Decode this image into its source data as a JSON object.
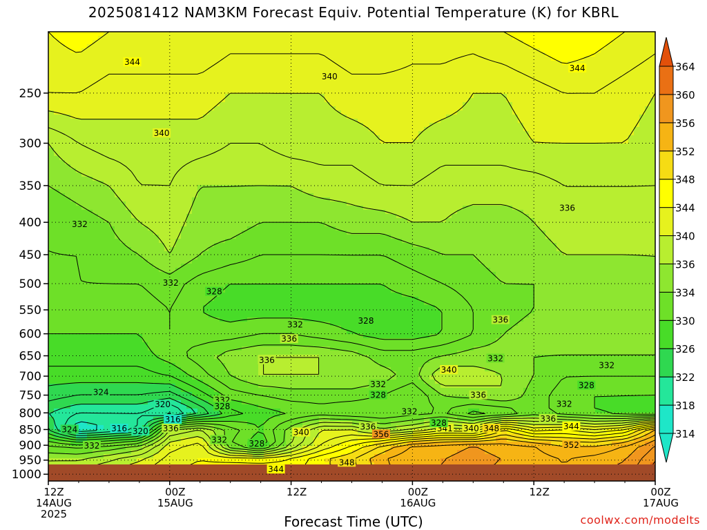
{
  "title": "2025081412 NAM3KM Forecast Equiv. Potential Temperature (K) for KBRL",
  "credit": "coolwx.com/modelts",
  "chart_data": {
    "type": "heatmap",
    "title": "2025081412 NAM3KM Forecast Equiv. Potential Temperature (K) for KBRL",
    "xlabel": "Forecast Time (UTC)",
    "ylabel": "",
    "y_axis": {
      "scale": "log-pressure",
      "inverted": true,
      "range": [
        1025,
        200
      ],
      "ticks": [
        250,
        300,
        350,
        400,
        450,
        500,
        550,
        600,
        650,
        700,
        750,
        800,
        850,
        900,
        950,
        1000
      ]
    },
    "x_axis": {
      "range_hours": [
        0,
        60
      ],
      "ticks": [
        {
          "hour": 0,
          "lines": [
            "12Z",
            "14AUG",
            "2025"
          ]
        },
        {
          "hour": 12,
          "lines": [
            "00Z",
            "15AUG"
          ]
        },
        {
          "hour": 24,
          "lines": [
            "12Z"
          ]
        },
        {
          "hour": 36,
          "lines": [
            "00Z",
            "16AUG"
          ]
        },
        {
          "hour": 48,
          "lines": [
            "12Z"
          ]
        },
        {
          "hour": 60,
          "lines": [
            "00Z",
            "17AUG"
          ]
        }
      ]
    },
    "grid": true,
    "colorbar": {
      "position": "right",
      "levels": [
        314,
        318,
        322,
        326,
        330,
        334,
        336,
        340,
        344,
        348,
        352,
        356,
        360,
        364
      ],
      "colors": [
        "#1ee6c8",
        "#24e69a",
        "#2fd850",
        "#48dc28",
        "#6ee028",
        "#8ee630",
        "#b8ee30",
        "#e6f21e",
        "#ffff00",
        "#f6dc14",
        "#f6b414",
        "#f0961e",
        "#ea7014",
        "#e2500a"
      ]
    },
    "hours": [
      0,
      3,
      6,
      9,
      12,
      15,
      18,
      21,
      24,
      27,
      30,
      33,
      36,
      39,
      42,
      45,
      48,
      51,
      54,
      57,
      60
    ],
    "pressure_levels": [
      200,
      250,
      300,
      350,
      400,
      450,
      500,
      550,
      600,
      650,
      700,
      750,
      800,
      850,
      900,
      950,
      1000
    ],
    "theta_e": [
      [
        344,
        345,
        344,
        344,
        344,
        344,
        343,
        343,
        343,
        343,
        344,
        344,
        343,
        343,
        343,
        344,
        345,
        346,
        345,
        344,
        343
      ],
      [
        342,
        342,
        341,
        341,
        341,
        341,
        340,
        340,
        340,
        340,
        341,
        341,
        341,
        341,
        340,
        340,
        341,
        342,
        342,
        341,
        340
      ],
      [
        336,
        338,
        339,
        339,
        339,
        339,
        338,
        338,
        339,
        339,
        339,
        340,
        340,
        339,
        339,
        339,
        340,
        340,
        340,
        340,
        339
      ],
      [
        334,
        335,
        336,
        338,
        338,
        336,
        336,
        336,
        336,
        337,
        337,
        338,
        338,
        337,
        337,
        337,
        337,
        338,
        338,
        338,
        338
      ],
      [
        332,
        333,
        334,
        336,
        337,
        335,
        335,
        334,
        334,
        334,
        335,
        335,
        336,
        336,
        335,
        335,
        336,
        337,
        337,
        337,
        337
      ],
      [
        332,
        332,
        333,
        334,
        336,
        334,
        333,
        332,
        332,
        332,
        332,
        332,
        333,
        334,
        334,
        335,
        335,
        336,
        336,
        336,
        336
      ],
      [
        331,
        332,
        332,
        332,
        333,
        331,
        330,
        330,
        330,
        330,
        330,
        330,
        331,
        332,
        333,
        334,
        334,
        335,
        335,
        335,
        336
      ],
      [
        331,
        331,
        331,
        331,
        332,
        330,
        329,
        329,
        329,
        329,
        329,
        329,
        329,
        330,
        332,
        333,
        334,
        334,
        334,
        335,
        335
      ],
      [
        330,
        330,
        330,
        330,
        332,
        331,
        331,
        332,
        332,
        331,
        330,
        329,
        329,
        330,
        332,
        334,
        335,
        335,
        335,
        335,
        335
      ],
      [
        329,
        329,
        329,
        329,
        331,
        333,
        335,
        336,
        336,
        336,
        335,
        333,
        333,
        334,
        335,
        335,
        334,
        334,
        334,
        334,
        334
      ],
      [
        327,
        327,
        327,
        327,
        328,
        331,
        334,
        336,
        336,
        336,
        336,
        335,
        333,
        338,
        337,
        336,
        334,
        332,
        332,
        332,
        332
      ],
      [
        325,
        324,
        324,
        324,
        323,
        327,
        331,
        332,
        333,
        333,
        333,
        332,
        330,
        334,
        335,
        336,
        333,
        331,
        330,
        330,
        330
      ],
      [
        322,
        320,
        320,
        320,
        317,
        322,
        327,
        329,
        330,
        331,
        330,
        330,
        331,
        332,
        329,
        330,
        333,
        331,
        330,
        329,
        328
      ],
      [
        324,
        316,
        318,
        320,
        336,
        338,
        333,
        330,
        335,
        340,
        340,
        336,
        338,
        341,
        340,
        348,
        343,
        344,
        342,
        344,
        352
      ],
      [
        332,
        331,
        332,
        334,
        341,
        343,
        332,
        328,
        336,
        342,
        346,
        350,
        354,
        355,
        356,
        355,
        354,
        352,
        352,
        354,
        358
      ],
      [
        336,
        336,
        338,
        340,
        343,
        344,
        344,
        344,
        345,
        348,
        350,
        354,
        356,
        356,
        357,
        356,
        355,
        354,
        355,
        356,
        360
      ],
      [
        338,
        339,
        340,
        342,
        344,
        345,
        346,
        345,
        344,
        346,
        348,
        352,
        355,
        356,
        356,
        355,
        354,
        354,
        355,
        357,
        361
      ]
    ],
    "contour_labels": [
      {
        "text": "344",
        "hour": 8.3,
        "p": 224
      },
      {
        "text": "340",
        "hour": 27.8,
        "p": 236
      },
      {
        "text": "344",
        "hour": 52.3,
        "p": 229
      },
      {
        "text": "340",
        "hour": 11.2,
        "p": 290
      },
      {
        "text": "336",
        "hour": 51.3,
        "p": 381
      },
      {
        "text": "332",
        "hour": 3.1,
        "p": 404
      },
      {
        "text": "332",
        "hour": 12.1,
        "p": 500
      },
      {
        "text": "328",
        "hour": 16.4,
        "p": 516
      },
      {
        "text": "332",
        "hour": 24.4,
        "p": 582
      },
      {
        "text": "328",
        "hour": 31.4,
        "p": 574
      },
      {
        "text": "336",
        "hour": 44.7,
        "p": 572
      },
      {
        "text": "336",
        "hour": 23.8,
        "p": 613
      },
      {
        "text": "336",
        "hour": 21.6,
        "p": 662
      },
      {
        "text": "340",
        "hour": 39.6,
        "p": 686
      },
      {
        "text": "332",
        "hour": 44.2,
        "p": 658
      },
      {
        "text": "332",
        "hour": 55.2,
        "p": 675
      },
      {
        "text": "328",
        "hour": 53.2,
        "p": 726
      },
      {
        "text": "332",
        "hour": 32.6,
        "p": 723
      },
      {
        "text": "328",
        "hour": 32.6,
        "p": 752
      },
      {
        "text": "336",
        "hour": 42.5,
        "p": 752
      },
      {
        "text": "324",
        "hour": 5.2,
        "p": 744
      },
      {
        "text": "320",
        "hour": 11.3,
        "p": 778
      },
      {
        "text": "332",
        "hour": 17.2,
        "p": 766
      },
      {
        "text": "328",
        "hour": 17.2,
        "p": 784
      },
      {
        "text": "316",
        "hour": 12.3,
        "p": 822
      },
      {
        "text": "332",
        "hour": 35.7,
        "p": 798
      },
      {
        "text": "332",
        "hour": 51.0,
        "p": 777
      },
      {
        "text": "324",
        "hour": 2.1,
        "p": 852
      },
      {
        "text": "316",
        "hour": 7.0,
        "p": 849
      },
      {
        "text": "320",
        "hour": 9.1,
        "p": 858
      },
      {
        "text": "336",
        "hour": 12.1,
        "p": 849
      },
      {
        "text": "336",
        "hour": 31.6,
        "p": 844
      },
      {
        "text": "336",
        "hour": 49.4,
        "p": 820
      },
      {
        "text": "341",
        "hour": 39.2,
        "p": 849
      },
      {
        "text": "340",
        "hour": 41.8,
        "p": 849
      },
      {
        "text": "348",
        "hour": 43.8,
        "p": 849
      },
      {
        "text": "344",
        "hour": 51.7,
        "p": 843
      },
      {
        "text": "340",
        "hour": 25.0,
        "p": 861
      },
      {
        "text": "328",
        "hour": 38.6,
        "p": 832
      },
      {
        "text": "356",
        "hour": 32.9,
        "p": 867
      },
      {
        "text": "332",
        "hour": 16.9,
        "p": 885
      },
      {
        "text": "328",
        "hour": 20.6,
        "p": 897
      },
      {
        "text": "332",
        "hour": 4.3,
        "p": 904
      },
      {
        "text": "352",
        "hour": 51.7,
        "p": 902
      },
      {
        "text": "348",
        "hour": 29.5,
        "p": 961
      },
      {
        "text": "344",
        "hour": 22.5,
        "p": 985
      }
    ]
  }
}
